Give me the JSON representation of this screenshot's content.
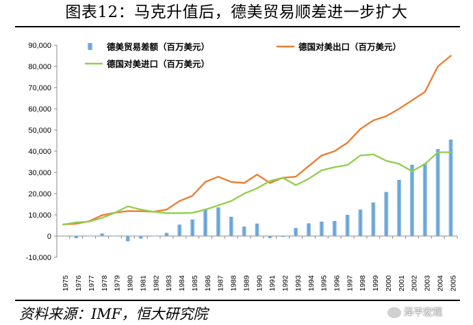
{
  "title": "图表12：马克升值后，德美贸易顺差进一步扩大",
  "source": "资料来源：IMF，恒大研究院",
  "watermark": "泽平宏观",
  "chart_data": {
    "type": "bar+line",
    "categories": [
      "1975",
      "1976",
      "1977",
      "1978",
      "1979",
      "1980",
      "1981",
      "1982",
      "1983",
      "1984",
      "1985",
      "1986",
      "1987",
      "1988",
      "1989",
      "1990",
      "1991",
      "1992",
      "1993",
      "1994",
      "1995",
      "1996",
      "1997",
      "1998",
      "1999",
      "2000",
      "2001",
      "2002",
      "2003",
      "2004",
      "2005"
    ],
    "ylim": [
      -10000,
      90000
    ],
    "yticks": [
      "90,000",
      "80,000",
      "70,000",
      "60,000",
      "50,000",
      "40,000",
      "30,000",
      "20,000",
      "10,000",
      "0",
      "-10,000"
    ],
    "grid": false,
    "legend_position": "top",
    "series": [
      {
        "name": "德美贸易差额（百万美元）",
        "type": "bar",
        "color": "#5b9bd5",
        "values": [
          200,
          -1000,
          0,
          1200,
          0,
          -2500,
          -1200,
          0,
          1500,
          5400,
          7800,
          12800,
          13500,
          9100,
          4500,
          5900,
          -1000,
          -400,
          3800,
          6000,
          6800,
          7100,
          10000,
          12500,
          15800,
          20800,
          26500,
          33600,
          34300,
          41000,
          45500
        ]
      },
      {
        "name": "德国对美出口（百万美元）",
        "type": "line",
        "color": "#ed7d31",
        "values": [
          5500,
          5800,
          7000,
          9800,
          11000,
          11800,
          11700,
          11500,
          12500,
          16500,
          19000,
          25500,
          28000,
          25500,
          25000,
          29000,
          25000,
          27500,
          28000,
          33000,
          38000,
          40000,
          44000,
          50500,
          54500,
          56500,
          60000,
          64000,
          68000,
          80000,
          85000
        ]
      },
      {
        "name": "德国对美进口（百万美元）",
        "type": "line",
        "color": "#92d050",
        "values": [
          5400,
          6500,
          6800,
          8500,
          11000,
          14000,
          12500,
          11500,
          10800,
          10800,
          11000,
          12500,
          14500,
          16500,
          20000,
          22500,
          26000,
          27500,
          24000,
          27000,
          31000,
          32500,
          33500,
          38000,
          38500,
          35500,
          34000,
          30500,
          34000,
          39500,
          39500
        ]
      }
    ]
  }
}
